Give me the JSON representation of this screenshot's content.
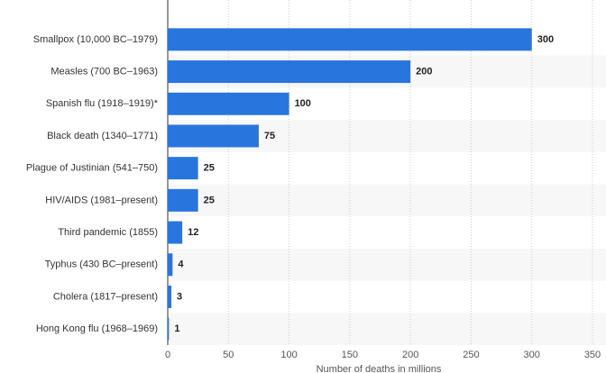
{
  "chart_data": {
    "type": "bar",
    "orientation": "horizontal",
    "x_label": "Number of deaths in millions",
    "categories": [
      "Smallpox (10,000 BC–1979)",
      "Measles (700 BC–1963)",
      "Spanish flu (1918–1919)*",
      "Black death (1340–1771)",
      "Plague of Justinian (541–750)",
      "HIV/AIDS (1981–present)",
      "Third pandemic (1855)",
      "Typhus (430 BC–present)",
      "Cholera (1817–present)",
      "Hong Kong flu (1968–1969)"
    ],
    "values": [
      300,
      200,
      100,
      75,
      25,
      25,
      12,
      4,
      3,
      1
    ],
    "color": "#2876dd",
    "xlim": [
      0,
      350
    ],
    "xticks": [
      0,
      50,
      100,
      150,
      200,
      250,
      300,
      350
    ],
    "grid": true
  }
}
